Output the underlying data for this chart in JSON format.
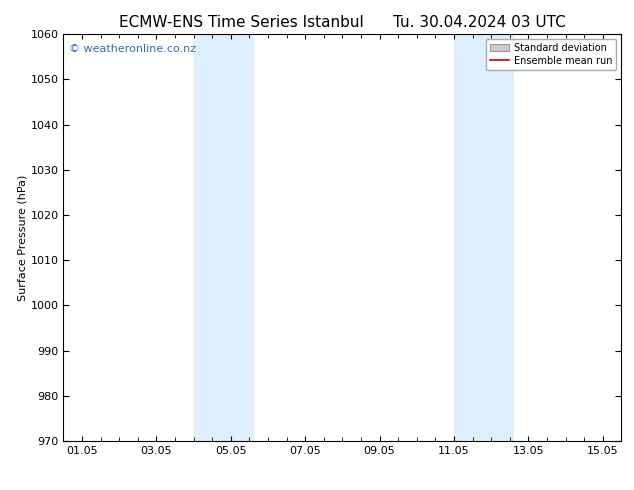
{
  "title": "ECMW-ENS Time Series Istanbul      Tu. 30.04.2024 03 UTC",
  "ylabel": "Surface Pressure (hPa)",
  "xlabel": "",
  "ylim": [
    970,
    1060
  ],
  "yticks": [
    970,
    980,
    990,
    1000,
    1010,
    1020,
    1030,
    1040,
    1050,
    1060
  ],
  "xtick_labels": [
    "01.05",
    "03.05",
    "05.05",
    "07.05",
    "09.05",
    "11.05",
    "13.05",
    "15.05"
  ],
  "xtick_positions": [
    0,
    2,
    4,
    6,
    8,
    10,
    12,
    14
  ],
  "xlim": [
    -0.5,
    14.5
  ],
  "shaded_bands": [
    {
      "x_start": 3.0,
      "x_end": 4.6,
      "color": "#ddeeff"
    },
    {
      "x_start": 10.0,
      "x_end": 11.6,
      "color": "#ddeeff"
    }
  ],
  "watermark_text": "© weatheronline.co.nz",
  "watermark_color": "#3366cc",
  "watermark_fontsize": 8,
  "background_color": "#ffffff",
  "legend_std_color": "#cccccc",
  "legend_std_label": "Standard deviation",
  "legend_mean_color": "#cc0000",
  "legend_mean_label": "Ensemble mean run",
  "title_fontsize": 11,
  "ylabel_fontsize": 8,
  "tick_fontsize": 8
}
